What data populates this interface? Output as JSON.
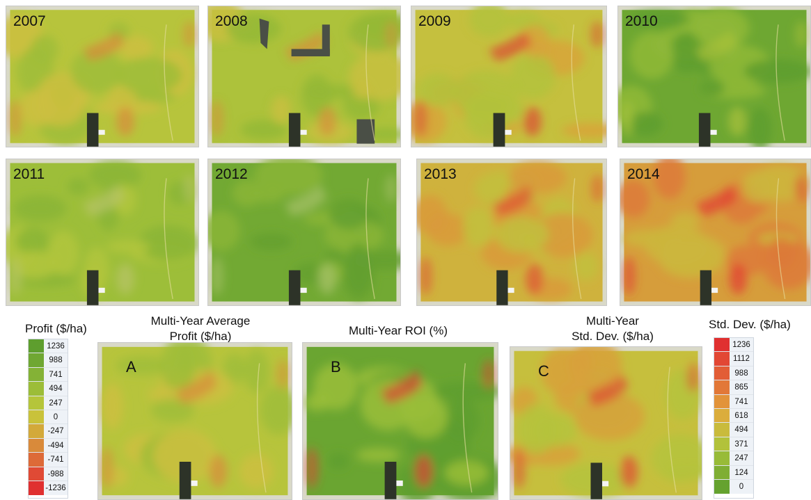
{
  "year_maps": [
    {
      "label": "2007",
      "theme": "yellowgreen"
    },
    {
      "label": "2008",
      "theme": "yellowgreen_gaps"
    },
    {
      "label": "2009",
      "theme": "yellow_red"
    },
    {
      "label": "2010",
      "theme": "green"
    },
    {
      "label": "2011",
      "theme": "lightgreen"
    },
    {
      "label": "2012",
      "theme": "darkgreen"
    },
    {
      "label": "2013",
      "theme": "orange"
    },
    {
      "label": "2014",
      "theme": "red"
    }
  ],
  "summary_maps": [
    {
      "letter": "A",
      "caption_line1": "Multi-Year Average",
      "caption_line2": "Profit ($/ha)",
      "theme": "yellowgreen"
    },
    {
      "letter": "B",
      "caption_line1": "Multi-Year ROI (%)",
      "caption_line2": "",
      "theme": "roi"
    },
    {
      "letter": "C",
      "caption_line1": "Multi-Year",
      "caption_line2": "Std. Dev. ($/ha)",
      "theme": "stddev"
    }
  ],
  "profit_legend": {
    "title": "Profit ($/ha)",
    "items": [
      {
        "value": "1236",
        "color": "#5e9e2e"
      },
      {
        "value": "988",
        "color": "#6fa732"
      },
      {
        "value": "741",
        "color": "#84b236"
      },
      {
        "value": "494",
        "color": "#9cbd38"
      },
      {
        "value": "247",
        "color": "#b5c53a"
      },
      {
        "value": "0",
        "color": "#c9c23a"
      },
      {
        "value": "-247",
        "color": "#d3a93a"
      },
      {
        "value": "-494",
        "color": "#d98a3a"
      },
      {
        "value": "-741",
        "color": "#dd6a38"
      },
      {
        "value": "-988",
        "color": "#e04a35"
      },
      {
        "value": "-1236",
        "color": "#e03030"
      }
    ]
  },
  "stddev_legend": {
    "title": "Std. Dev. ($/ha)",
    "items": [
      {
        "value": "1236",
        "color": "#e03030"
      },
      {
        "value": "1112",
        "color": "#e24734"
      },
      {
        "value": "988",
        "color": "#e25d36"
      },
      {
        "value": "865",
        "color": "#e27838"
      },
      {
        "value": "741",
        "color": "#e2933a"
      },
      {
        "value": "618",
        "color": "#dbad3c"
      },
      {
        "value": "494",
        "color": "#c9bb3c"
      },
      {
        "value": "371",
        "color": "#b2c23b"
      },
      {
        "value": "247",
        "color": "#98bb38"
      },
      {
        "value": "124",
        "color": "#7fae34"
      },
      {
        "value": "0",
        "color": "#65a22f"
      }
    ]
  }
}
